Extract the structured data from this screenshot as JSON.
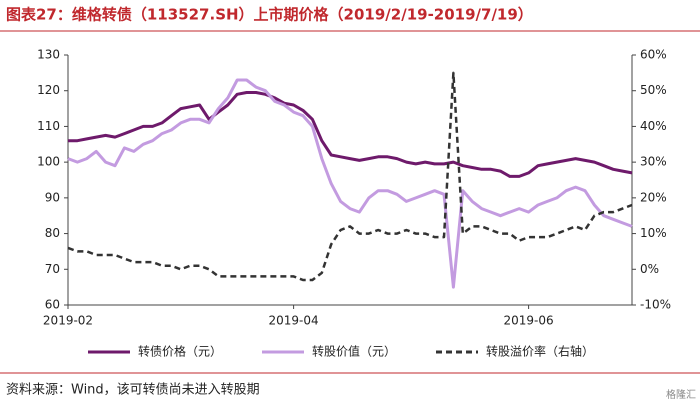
{
  "chart_data": {
    "type": "line",
    "title": "图表27：维格转债（113527.SH）上市期价格（2019/2/19-2019/7/19）",
    "source": "资料来源：Wind，该可转债尚未进入转股期",
    "watermark": "格隆汇",
    "categories": [
      "2019-02",
      null,
      null,
      null,
      null,
      null,
      null,
      null,
      null,
      null,
      null,
      null,
      null,
      null,
      null,
      null,
      null,
      null,
      null,
      null,
      null,
      null,
      null,
      null,
      "2019-04",
      null,
      null,
      null,
      null,
      null,
      null,
      null,
      null,
      null,
      null,
      null,
      null,
      null,
      null,
      null,
      null,
      null,
      null,
      null,
      null,
      null,
      null,
      null,
      null,
      "2019-06",
      null,
      null,
      null,
      null,
      null,
      null,
      null,
      null,
      null,
      null,
      null
    ],
    "ylim": [
      60,
      130
    ],
    "yticks": [
      60,
      70,
      80,
      90,
      100,
      110,
      120,
      130
    ],
    "y2lim": [
      -10,
      60
    ],
    "y2ticks": [
      {
        "value": -10,
        "label": "-10%"
      },
      {
        "value": 0,
        "label": "0%"
      },
      {
        "value": 10,
        "label": "10%"
      },
      {
        "value": 20,
        "label": "20%"
      },
      {
        "value": 30,
        "label": "30%"
      },
      {
        "value": 40,
        "label": "40%"
      },
      {
        "value": 50,
        "label": "50%"
      },
      {
        "value": 60,
        "label": "60%"
      }
    ],
    "grid": false,
    "series": [
      {
        "name": "转债价格（元）",
        "color": "#6e1a6b",
        "style": "solid",
        "values": [
          106,
          106,
          106.5,
          107,
          107.5,
          107,
          108,
          109,
          110,
          110,
          111,
          113,
          115,
          115.5,
          116,
          112,
          114,
          116,
          119,
          119.5,
          119.5,
          119,
          118,
          116.5,
          116,
          114.5,
          112,
          106,
          102,
          101.5,
          101,
          100.5,
          101,
          101.5,
          101.5,
          101,
          100,
          99.5,
          100,
          99.5,
          99.5,
          100,
          99,
          98.5,
          98,
          98,
          97.5,
          96,
          96,
          97,
          99,
          99.5,
          100,
          100.5,
          101,
          100.5,
          100,
          99,
          98,
          97.5,
          97
        ]
      },
      {
        "name": "转股价值（元）",
        "color": "#c39be0",
        "style": "solid",
        "values": [
          101,
          100,
          101,
          103,
          100,
          99,
          104,
          103,
          105,
          106,
          108,
          109,
          111,
          112,
          112,
          111,
          115,
          118,
          123,
          123,
          121,
          120,
          117,
          116,
          114,
          113,
          110,
          101,
          94,
          89,
          87,
          86,
          90,
          92,
          92,
          91,
          89,
          90,
          91,
          92,
          91,
          65,
          92,
          89,
          87,
          86,
          85,
          86,
          87,
          86,
          88,
          89,
          90,
          92,
          93,
          92,
          88,
          85,
          84,
          83,
          82
        ]
      },
      {
        "name": "转股溢价率（右轴）",
        "color": "#333333",
        "style": "dashed",
        "axis": "y2",
        "values": [
          6,
          5,
          5,
          4,
          4,
          4,
          3,
          2,
          2,
          2,
          1,
          1,
          0,
          1,
          1,
          0,
          -2,
          -2,
          -2,
          -2,
          -2,
          -2,
          -2,
          -2,
          -2,
          -3,
          -3,
          -1,
          7,
          11,
          12,
          10,
          10,
          11,
          10,
          10,
          11,
          10,
          10,
          9,
          9,
          55,
          10,
          12,
          12,
          11,
          10,
          10,
          8,
          9,
          9,
          9,
          10,
          11,
          12,
          11,
          15,
          16,
          16,
          17,
          18
        ]
      }
    ]
  }
}
